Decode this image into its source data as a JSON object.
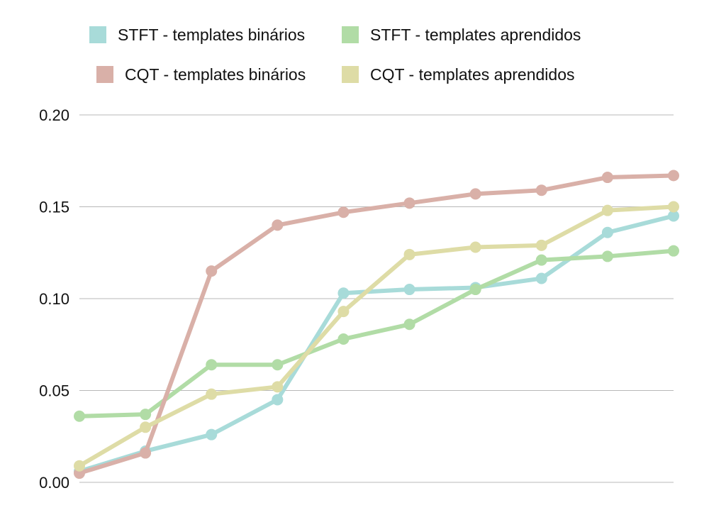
{
  "chart_data": {
    "type": "line",
    "x": [
      1,
      2,
      3,
      4,
      5,
      6,
      7,
      8,
      9,
      10
    ],
    "ylim": [
      0,
      0.2
    ],
    "yticks": [
      "0.00",
      "0.05",
      "0.10",
      "0.15",
      "0.20"
    ],
    "ytick_values": [
      0,
      0.05,
      0.1,
      0.15,
      0.2
    ],
    "grid": true,
    "legend_position": "top",
    "series": [
      {
        "name": "STFT - templates binários",
        "color": "#a8dbd9",
        "values": [
          0.006,
          0.017,
          0.026,
          0.045,
          0.103,
          0.105,
          0.106,
          0.111,
          0.136,
          0.145
        ]
      },
      {
        "name": "STFT - templates aprendidos",
        "color": "#b1dca6",
        "values": [
          0.036,
          0.037,
          0.064,
          0.064,
          0.078,
          0.086,
          0.105,
          0.121,
          0.123,
          0.126
        ]
      },
      {
        "name": "CQT - templates binários",
        "color": "#d9b0a8",
        "values": [
          0.005,
          0.016,
          0.115,
          0.14,
          0.147,
          0.152,
          0.157,
          0.159,
          0.166,
          0.167
        ]
      },
      {
        "name": "CQT - templates aprendidos",
        "color": "#dedca6",
        "values": [
          0.009,
          0.03,
          0.048,
          0.052,
          0.093,
          0.124,
          0.128,
          0.129,
          0.148,
          0.15
        ]
      }
    ]
  }
}
